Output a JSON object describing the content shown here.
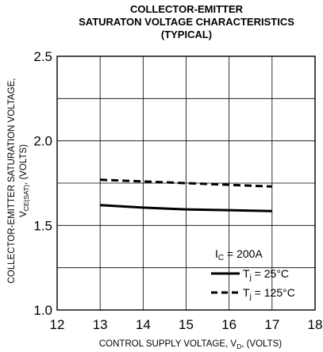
{
  "chart_data": {
    "type": "line",
    "title": [
      "COLLECTOR-EMITTER",
      "SATURATON VOLTAGE CHARACTERISTICS",
      "(TYPICAL)"
    ],
    "xlabel": {
      "main": "CONTROL SUPPLY VOLTAGE, V",
      "sub": "D",
      "tail": ", (VOLTS)"
    },
    "ylabel": {
      "line1": "COLLECTOR-EMITTER SATURATION VOLTAGE,",
      "line2_main": "V",
      "line2_sub": "CE(SAT)",
      "line2_tail": ", (VOLTS)"
    },
    "xlim": [
      12,
      18
    ],
    "ylim": [
      1.0,
      2.5
    ],
    "x_ticks": [
      "12",
      "13",
      "14",
      "15",
      "16",
      "17",
      "18"
    ],
    "y_ticks": [
      "1.0",
      "1.5",
      "2.0",
      "2.5"
    ],
    "grid": true,
    "annotation": {
      "main": "I",
      "sub": "C",
      "tail": " = 200A"
    },
    "series": [
      {
        "legend_main": "T",
        "legend_sub": "j",
        "legend_tail": " = 25°C",
        "style": "solid",
        "x": [
          13,
          14,
          15,
          16,
          17
        ],
        "y": [
          1.62,
          1.605,
          1.595,
          1.59,
          1.585
        ]
      },
      {
        "legend_main": "T",
        "legend_sub": "j",
        "legend_tail": " = 125°C",
        "style": "dashed",
        "x": [
          13,
          14,
          15,
          16,
          17
        ],
        "y": [
          1.77,
          1.76,
          1.75,
          1.74,
          1.73
        ]
      }
    ],
    "legend_position": "bottom-right"
  }
}
